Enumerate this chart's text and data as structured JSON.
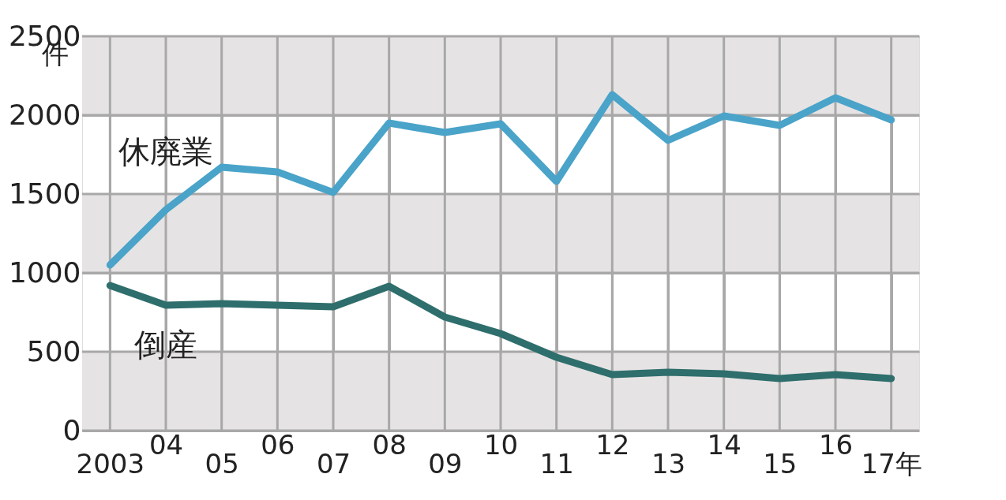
{
  "chart_data": {
    "type": "line",
    "ylabel": "件",
    "categories": [
      "2003",
      "04",
      "05",
      "06",
      "07",
      "08",
      "09",
      "10",
      "11",
      "12",
      "13",
      "14",
      "15",
      "16",
      "17年"
    ],
    "series": [
      {
        "name": "休廃業",
        "color": "#4aa3c8",
        "values": [
          1050,
          1400,
          1670,
          1640,
          1510,
          1950,
          1890,
          1945,
          1580,
          2130,
          1840,
          1995,
          1935,
          2110,
          1970
        ]
      },
      {
        "name": "倒産",
        "color": "#2e6e6c",
        "values": [
          920,
          795,
          805,
          795,
          785,
          915,
          720,
          615,
          465,
          355,
          370,
          360,
          330,
          355,
          330
        ]
      }
    ],
    "ylim": [
      0,
      2500
    ],
    "yticks": [
      0,
      500,
      1000,
      1500,
      2000,
      2500
    ],
    "grid": true,
    "line_style": "solid",
    "bands": [
      {
        "axis": "y",
        "from": 0,
        "to": 500,
        "color": "#e6e3e4"
      },
      {
        "axis": "y",
        "from": 1000,
        "to": 1500,
        "color": "#e6e3e4"
      },
      {
        "axis": "y",
        "from": 2000,
        "to": 2500,
        "color": "#e6e3e4"
      }
    ]
  }
}
